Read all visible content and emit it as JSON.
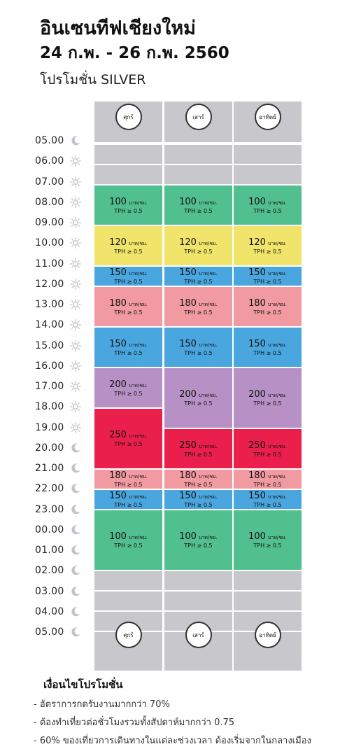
{
  "header": {
    "title": "อินเซนทีฟเชียงใหม่",
    "dates": "24 ก.พ. - 26 ก.พ. 2560",
    "promo": "โปรโมชั่น SILVER"
  },
  "days": [
    "ศุกร์",
    "เสาร์",
    "อาทิตย์"
  ],
  "times": [
    {
      "label": "05.00",
      "icon": "moon-icon"
    },
    {
      "label": "06.00",
      "icon": "sun-icon"
    },
    {
      "label": "07.00",
      "icon": "sun-icon"
    },
    {
      "label": "08.00",
      "icon": "sun-icon"
    },
    {
      "label": "09.00",
      "icon": "sun-icon"
    },
    {
      "label": "10.00",
      "icon": "sun-icon"
    },
    {
      "label": "11.00",
      "icon": "sun-icon"
    },
    {
      "label": "12.00",
      "icon": "sun-icon"
    },
    {
      "label": "13.00",
      "icon": "sun-icon"
    },
    {
      "label": "14.00",
      "icon": "sun-icon"
    },
    {
      "label": "15.00",
      "icon": "sun-icon"
    },
    {
      "label": "16.00",
      "icon": "sun-icon"
    },
    {
      "label": "17.00",
      "icon": "sun-icon"
    },
    {
      "label": "18.00",
      "icon": "sun-icon"
    },
    {
      "label": "19.00",
      "icon": "sun-icon"
    },
    {
      "label": "20.00",
      "icon": "moon-icon"
    },
    {
      "label": "21.00",
      "icon": "moon-icon"
    },
    {
      "label": "22.00",
      "icon": "moon-icon"
    },
    {
      "label": "23.00",
      "icon": "moon-icon"
    },
    {
      "label": "00.00",
      "icon": "moon-icon"
    },
    {
      "label": "01.00",
      "icon": "moon-icon"
    },
    {
      "label": "02.00",
      "icon": "moon-icon"
    },
    {
      "label": "03.00",
      "icon": "moon-icon"
    },
    {
      "label": "04.00",
      "icon": "moon-icon"
    },
    {
      "label": "05.00",
      "icon": "moon-icon"
    }
  ],
  "unit_label": "บาท/ชม.",
  "tph_label": "TPH ≥ 0.5",
  "colors": {
    "green": "#52bf8e",
    "yellow": "#f0e56a",
    "blue": "#4aa6de",
    "pink": "#f19aa1",
    "purple": "#b791c5",
    "red": "#ea1f4b",
    "gray": "#c8c7cc"
  },
  "schedule": [
    [
      {
        "price": "100",
        "color": "green",
        "start": 7,
        "end": 9
      },
      {
        "price": "120",
        "color": "yellow",
        "start": 9,
        "end": 11
      },
      {
        "price": "150",
        "color": "blue",
        "start": 11,
        "end": 12
      },
      {
        "price": "180",
        "color": "pink",
        "start": 12,
        "end": 14
      },
      {
        "price": "150",
        "color": "blue",
        "start": 14,
        "end": 16
      },
      {
        "price": "200",
        "color": "purple",
        "start": 16,
        "end": 18
      },
      {
        "price": "250",
        "color": "red",
        "start": 18,
        "end": 21
      },
      {
        "price": "180",
        "color": "pink",
        "start": 21,
        "end": 22
      },
      {
        "price": "150",
        "color": "blue",
        "start": 22,
        "end": 23
      },
      {
        "price": "100",
        "color": "green",
        "start": 23,
        "end": 26
      }
    ],
    [
      {
        "price": "100",
        "color": "green",
        "start": 7,
        "end": 9
      },
      {
        "price": "120",
        "color": "yellow",
        "start": 9,
        "end": 11
      },
      {
        "price": "150",
        "color": "blue",
        "start": 11,
        "end": 12
      },
      {
        "price": "180",
        "color": "pink",
        "start": 12,
        "end": 14
      },
      {
        "price": "150",
        "color": "blue",
        "start": 14,
        "end": 16
      },
      {
        "price": "200",
        "color": "purple",
        "start": 16,
        "end": 19
      },
      {
        "price": "250",
        "color": "red",
        "start": 19,
        "end": 21
      },
      {
        "price": "180",
        "color": "pink",
        "start": 21,
        "end": 22
      },
      {
        "price": "150",
        "color": "blue",
        "start": 22,
        "end": 23
      },
      {
        "price": "100",
        "color": "green",
        "start": 23,
        "end": 26
      }
    ],
    [
      {
        "price": "100",
        "color": "green",
        "start": 7,
        "end": 9
      },
      {
        "price": "120",
        "color": "yellow",
        "start": 9,
        "end": 11
      },
      {
        "price": "150",
        "color": "blue",
        "start": 11,
        "end": 12
      },
      {
        "price": "180",
        "color": "pink",
        "start": 12,
        "end": 14
      },
      {
        "price": "150",
        "color": "blue",
        "start": 14,
        "end": 16
      },
      {
        "price": "200",
        "color": "purple",
        "start": 16,
        "end": 19
      },
      {
        "price": "250",
        "color": "red",
        "start": 19,
        "end": 21
      },
      {
        "price": "180",
        "color": "pink",
        "start": 21,
        "end": 22
      },
      {
        "price": "150",
        "color": "blue",
        "start": 22,
        "end": 23
      },
      {
        "price": "100",
        "color": "green",
        "start": 23,
        "end": 26
      }
    ]
  ],
  "conditions": {
    "title": "เงื่อนไขโปรโมชั่น",
    "items": [
      "- อัตราการกดรับงานมากกว่า 70%",
      "- ต้องทำเที่ยวต่อชั่วโมงรวมทั้งสัปดาห์มากกว่า 0.75",
      "- 60% ของเที่ยวการเดินทางในแต่ละช่วงเวลา ต้องเริ่มจากในกลางเมือง"
    ]
  }
}
